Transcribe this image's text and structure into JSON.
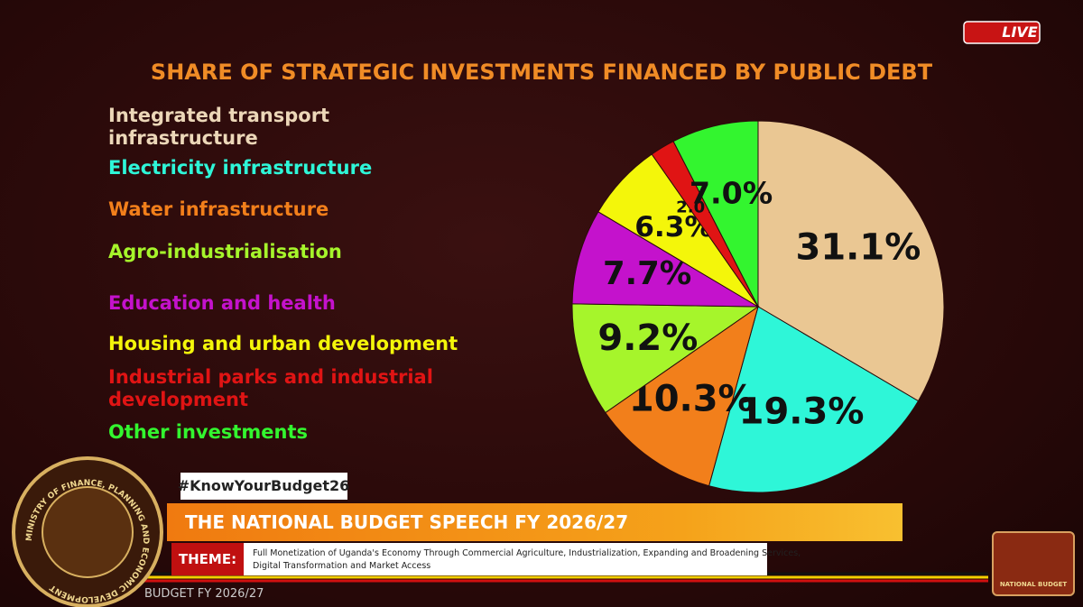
{
  "chart_data": {
    "type": "pie",
    "title": "SHARE OF STRATEGIC INVESTMENTS FINANCED BY PUBLIC DEBT",
    "categories": [
      "Integrated transport infrastructure",
      "Electricity infrastructure",
      "Water infrastructure",
      "Agro-industrialisation",
      "Education and health",
      "Housing and urban development",
      "Industrial parks and industrial development",
      "Other investments"
    ],
    "values": [
      31.1,
      19.3,
      10.3,
      9.2,
      7.7,
      6.3,
      2.0,
      7.0
    ],
    "value_labels": [
      "31.1%",
      "19.3%",
      "10.3%",
      "9.2%",
      "7.7%",
      "6.3%",
      "2.0%",
      "7.0%"
    ],
    "colors": [
      "#eac793",
      "#2ef6d8",
      "#f27f1b",
      "#a6f52b",
      "#c412cc",
      "#f4f60a",
      "#e01414",
      "#33f52f"
    ]
  },
  "broadcast": {
    "live": "LIVE",
    "hashtag": "#KnowYourBudget26",
    "headline": "THE NATIONAL BUDGET SPEECH FY 2026/27",
    "theme_label": "THEME:",
    "theme_lines": [
      "Full Monetization of Uganda's Economy Through Commercial Agriculture, Industrialization, Expanding and Broadening Services,",
      "Digital Transformation and Market Access"
    ],
    "ticker": "BUDGET FY 2026/27",
    "logo_text": "MINISTRY OF FINANCE, PLANNING AND ECONOMIC DEVELOPMENT",
    "briefcase_text": "NATIONAL BUDGET"
  }
}
